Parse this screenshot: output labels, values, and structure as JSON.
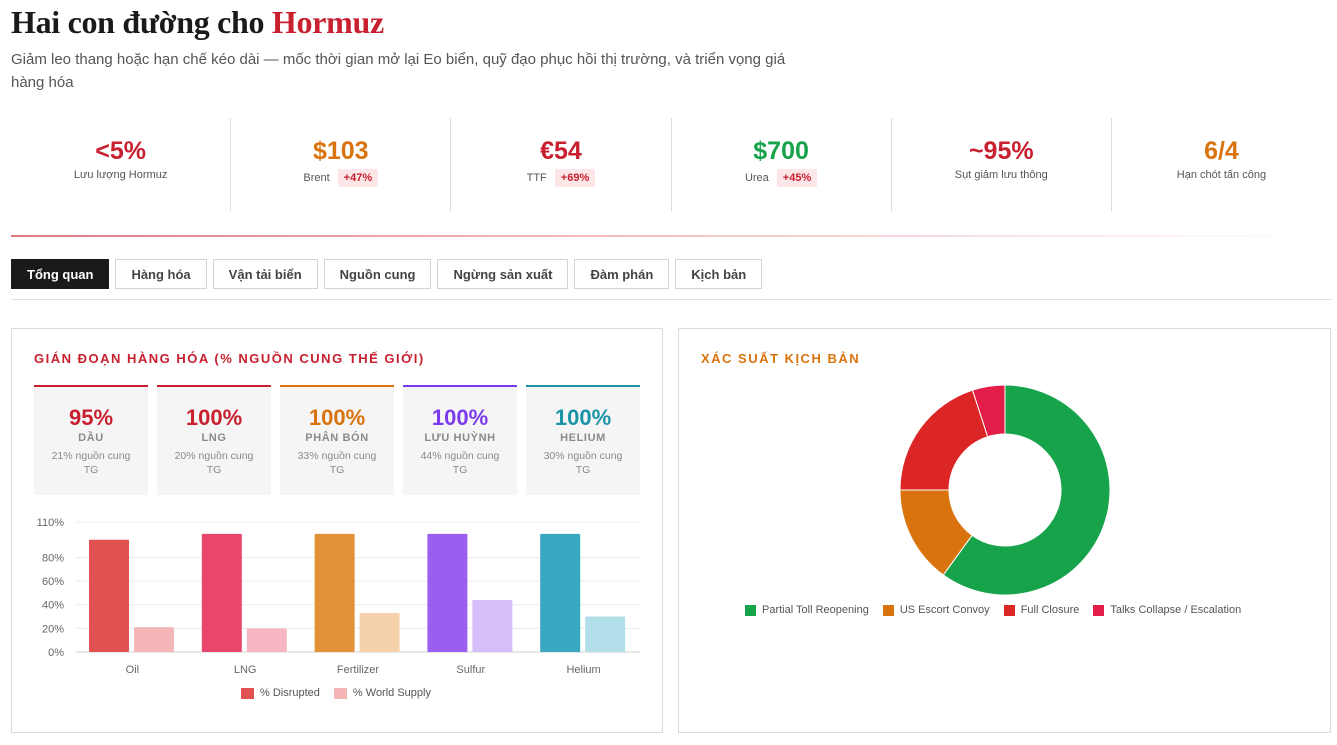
{
  "header": {
    "title_main": "Hai con đường cho ",
    "title_accent": "Hormuz",
    "subtitle": "Giảm leo thang hoặc hạn chế kéo dài — mốc thời gian mở lại Eo biển, quỹ đạo phục hồi thị trường, và triển vọng giá hàng hóa"
  },
  "kpis": [
    {
      "value": "<5%",
      "label": "Lưu lượng Hormuz",
      "badge": "",
      "color": "#c8202f"
    },
    {
      "value": "$103",
      "label": "Brent",
      "badge": "+47%",
      "color": "#d9730d"
    },
    {
      "value": "€54",
      "label": "TTF",
      "badge": "+69%",
      "color": "#c8202f"
    },
    {
      "value": "$700",
      "label": "Urea",
      "badge": "+45%",
      "color": "#16a34a"
    },
    {
      "value": "~95%",
      "label": "Sụt giảm lưu thông",
      "badge": "",
      "color": "#c8202f"
    },
    {
      "value": "6/4",
      "label": "Hạn chót tấn công",
      "badge": "",
      "color": "#d9730d"
    }
  ],
  "tabs": [
    {
      "label": "Tổng quan",
      "active": true
    },
    {
      "label": "Hàng hóa",
      "active": false
    },
    {
      "label": "Vận tải biển",
      "active": false
    },
    {
      "label": "Nguồn cung",
      "active": false
    },
    {
      "label": "Ngừng sản xuất",
      "active": false
    },
    {
      "label": "Đàm phán",
      "active": false
    },
    {
      "label": "Kịch bản",
      "active": false
    }
  ],
  "disruption_panel": {
    "title": "GIÁN ĐOẠN HÀNG HÓA (% NGUỒN CUNG THẾ GIỚI)",
    "title_color": "#c8202f",
    "cards": [
      {
        "value": "95%",
        "name": "DẦU",
        "note": "21% nguồn cung TG",
        "color": "#c8202f"
      },
      {
        "value": "100%",
        "name": "LNG",
        "note": "20% nguồn cung TG",
        "color": "#c8202f"
      },
      {
        "value": "100%",
        "name": "PHÂN BÓN",
        "note": "33% nguồn cung TG",
        "color": "#d9730d"
      },
      {
        "value": "100%",
        "name": "LƯU HUỲNH",
        "note": "44% nguồn cung TG",
        "color": "#7c3aed"
      },
      {
        "value": "100%",
        "name": "HELIUM",
        "note": "30% nguồn cung TG",
        "color": "#1a93a8"
      }
    ]
  },
  "scenario_panel": {
    "title": "XÁC SUẤT KỊCH BẢN",
    "title_color": "#d9730d"
  },
  "chart_data": [
    {
      "type": "bar",
      "categories": [
        "Oil",
        "LNG",
        "Fertilizer",
        "Sulfur",
        "Helium"
      ],
      "series": [
        {
          "name": "% Disrupted",
          "values": [
            95,
            100,
            100,
            100,
            100
          ],
          "colors": [
            "#e05252",
            "#e8466c",
            "#e39136",
            "#9b5ef0",
            "#38a8c2"
          ]
        },
        {
          "name": "% World Supply",
          "values": [
            21,
            20,
            33,
            44,
            30
          ],
          "colors": [
            "#f4b6b6",
            "#f7b5c4",
            "#f6d2ac",
            "#d6bff8",
            "#b2dfe9"
          ]
        }
      ],
      "ylim": [
        0,
        110
      ],
      "y_ticks": [
        "0%",
        "20%",
        "40%",
        "60%",
        "80%",
        "110%"
      ],
      "y_tick_values": [
        0,
        20,
        40,
        60,
        80,
        110
      ],
      "grid": true,
      "legend_position": "bottom",
      "legend_colors": [
        "#e05252",
        "#f4b6b6"
      ]
    },
    {
      "type": "pie",
      "donut": true,
      "labels": [
        "Partial Toll Reopening",
        "US Escort Convoy",
        "Full Closure",
        "Talks Collapse / Escalation"
      ],
      "values": [
        60,
        15,
        20,
        5
      ],
      "colors": [
        "#16a34a",
        "#d9730d",
        "#dc2626",
        "#e11d48"
      ],
      "legend_position": "bottom"
    }
  ]
}
